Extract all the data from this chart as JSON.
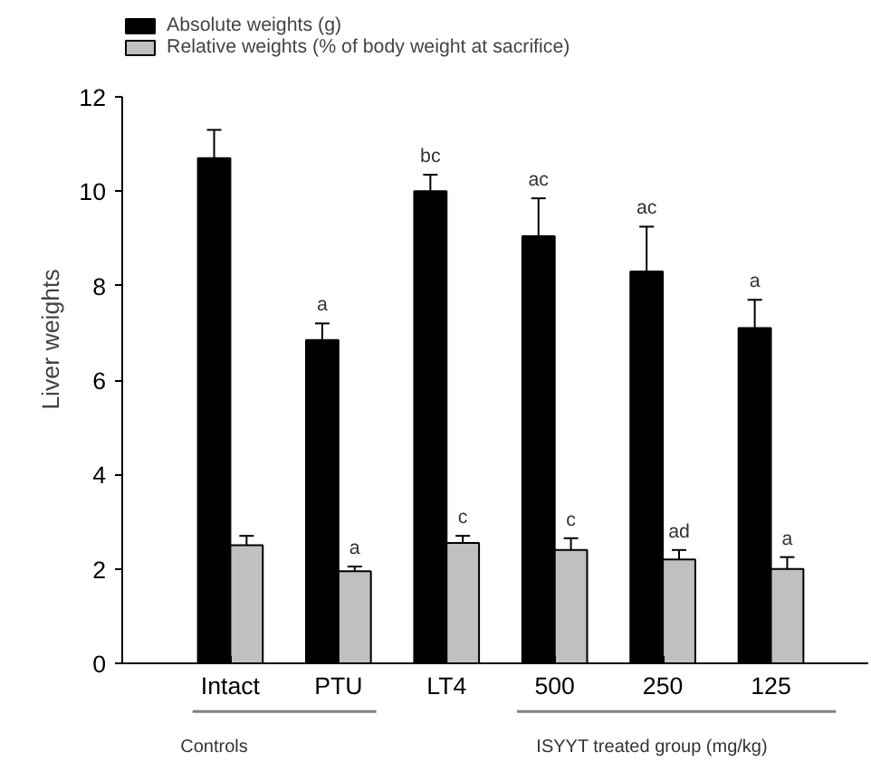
{
  "chart_data": {
    "type": "bar",
    "ylabel": "Liver weights",
    "categories": [
      "Intact",
      "PTU",
      "LT4",
      "500",
      "250",
      "125"
    ],
    "series": [
      {
        "name": "Absolute weights (g)",
        "color": "#000000",
        "values": [
          10.7,
          6.85,
          10.0,
          9.05,
          8.3,
          7.1
        ],
        "errors": [
          [
            10.7,
            11.3
          ],
          [
            6.85,
            7.2
          ],
          [
            10.0,
            10.35
          ],
          [
            9.05,
            9.85
          ],
          [
            8.3,
            9.25
          ],
          [
            7.1,
            7.7
          ]
        ],
        "value_labels": [
          null,
          "a",
          "bc",
          "ac",
          "ac",
          "a"
        ]
      },
      {
        "name": "Relative weights (% of body weight at sacrifice)",
        "color": "#c0c0c0",
        "values": [
          2.5,
          1.95,
          2.55,
          2.4,
          2.2,
          2.0
        ],
        "errors": [
          [
            2.5,
            2.7
          ],
          [
            1.95,
            2.05
          ],
          [
            2.55,
            2.7
          ],
          [
            2.4,
            2.65
          ],
          [
            2.2,
            2.4
          ],
          [
            2.0,
            2.25
          ]
        ],
        "value_labels": [
          null,
          "a",
          "c",
          "c",
          "ad",
          "a"
        ]
      }
    ],
    "ylim": [
      0,
      12
    ],
    "yticks": [
      0,
      2,
      4,
      6,
      8,
      10,
      12
    ],
    "legend": "top left",
    "grid": false,
    "annotations": [
      "Controls",
      "ISYYT treated group (mg/kg)"
    ]
  }
}
